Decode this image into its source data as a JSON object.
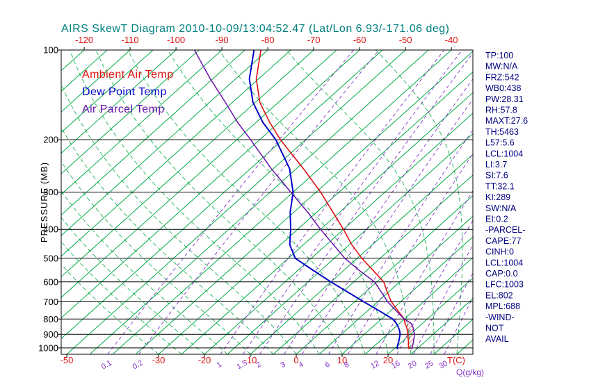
{
  "title": "AIRS SkewT Diagram 2010-10-09/13:04:52.47 (Lat/Lon 6.93/-171.06 deg)",
  "colors": {
    "title": "#008080",
    "temp_labels": "#dd1111",
    "pressure_labels": "#000000",
    "stats": "#000080",
    "isotherms": "#00aa44",
    "moist_adiabats": "#00aa44",
    "mixing_ratio": "#8833cc",
    "cape_hatch": "#cc1111"
  },
  "legend": {
    "items": [
      {
        "label": "Ambient Air Temp",
        "color": "#dd1111"
      },
      {
        "label": "Dew Point Temp",
        "color": "#0000cc"
      },
      {
        "label": "Air Parcel Temp",
        "color": "#6611aa"
      }
    ]
  },
  "stats_panel": {
    "lines": [
      "TP:100",
      "MW:N/A",
      "FRZ:542",
      "WB0:438",
      "PW:28.31",
      "RH:57.8",
      "MAXT:27.6",
      "TH:5463",
      "L57:5.6",
      "LCL:1004",
      "LI:3.7",
      "SI:7.6",
      "TT:32.1",
      "KI:289",
      "SW:N/A",
      "EI:0.2",
      "-PARCEL-",
      "CAPE:77",
      "CINH:0",
      "LCL:1004",
      "CAP:0.0",
      "LFC:1003",
      "EL:802",
      "MPL:688",
      "-WIND-",
      "NOT",
      "AVAIL"
    ]
  },
  "chart_data": {
    "type": "line",
    "title": "AIRS SkewT Diagram 2010-10-09/13:04:52.47 (Lat/Lon 6.93/-171.06 deg)",
    "x_axis": {
      "label": "T(C)",
      "top_tick_labels": [
        -120,
        -110,
        -100,
        -90,
        -80,
        -70,
        -60,
        -50,
        -40
      ],
      "bottom_tick_labels": [
        -50,
        -30,
        -20,
        -10,
        0,
        10,
        20
      ]
    },
    "y_axis": {
      "label": "PRESSURE (MB)",
      "scale": "log",
      "tick_labels": [
        100,
        200,
        300,
        400,
        500,
        600,
        700,
        800,
        900,
        1000
      ],
      "range": [
        100,
        1050
      ]
    },
    "q_axis": {
      "label": "Q(g/kg)",
      "values": [
        0.1,
        0.2,
        1,
        1.5,
        2,
        3,
        4,
        6,
        8,
        12,
        16,
        20,
        25,
        30
      ]
    },
    "isotherms": {
      "start": -130,
      "end": 45,
      "step": 5
    },
    "moist_adiabats": {
      "start": -30,
      "end": 45,
      "step": 5
    },
    "series": [
      {
        "name": "Ambient Air Temp",
        "color": "#dd1111",
        "points": [
          [
            1010,
            23.4
          ],
          [
            1000,
            23.0
          ],
          [
            975,
            22.1
          ],
          [
            950,
            21.3
          ],
          [
            925,
            20.4
          ],
          [
            900,
            19.5
          ],
          [
            875,
            18.5
          ],
          [
            850,
            17.4
          ],
          [
            825,
            16.1
          ],
          [
            800,
            15.0
          ],
          [
            750,
            11.6
          ],
          [
            700,
            8.0
          ],
          [
            650,
            4.8
          ],
          [
            600,
            1.5
          ],
          [
            550,
            -3.5
          ],
          [
            500,
            -9.0
          ],
          [
            450,
            -14.5
          ],
          [
            400,
            -20.0
          ],
          [
            350,
            -26.5
          ],
          [
            300,
            -34.0
          ],
          [
            250,
            -43.5
          ],
          [
            200,
            -55.5
          ],
          [
            175,
            -62.0
          ],
          [
            150,
            -69.0
          ],
          [
            125,
            -75.5
          ],
          [
            100,
            -81.5
          ]
        ]
      },
      {
        "name": "Dew Point Temp",
        "color": "#0000cc",
        "points": [
          [
            1010,
            20.8
          ],
          [
            1000,
            20.5
          ],
          [
            975,
            19.8
          ],
          [
            950,
            19.2
          ],
          [
            925,
            18.5
          ],
          [
            900,
            17.8
          ],
          [
            875,
            16.8
          ],
          [
            850,
            15.6
          ],
          [
            825,
            14.2
          ],
          [
            800,
            12.5
          ],
          [
            750,
            7.5
          ],
          [
            700,
            2.0
          ],
          [
            650,
            -3.8
          ],
          [
            600,
            -10.0
          ],
          [
            550,
            -16.5
          ],
          [
            500,
            -23.5
          ],
          [
            450,
            -28.0
          ],
          [
            400,
            -31.5
          ],
          [
            350,
            -35.8
          ],
          [
            300,
            -40.0
          ],
          [
            250,
            -46.5
          ],
          [
            200,
            -56.5
          ],
          [
            175,
            -63.5
          ],
          [
            150,
            -70.5
          ],
          [
            125,
            -77.0
          ],
          [
            100,
            -83.0
          ]
        ]
      },
      {
        "name": "Air Parcel Temp",
        "color": "#6611aa",
        "points": [
          [
            1010,
            23.9
          ],
          [
            1000,
            23.7
          ],
          [
            975,
            23.1
          ],
          [
            950,
            22.4
          ],
          [
            925,
            21.7
          ],
          [
            900,
            20.9
          ],
          [
            875,
            19.9
          ],
          [
            850,
            18.8
          ],
          [
            825,
            17.4
          ],
          [
            800,
            15.0
          ],
          [
            750,
            11.2
          ],
          [
            700,
            7.2
          ],
          [
            650,
            3.5
          ],
          [
            600,
            -0.5
          ],
          [
            550,
            -6.5
          ],
          [
            500,
            -12.7
          ],
          [
            450,
            -18.5
          ],
          [
            400,
            -25.0
          ],
          [
            350,
            -32.0
          ],
          [
            300,
            -40.5
          ],
          [
            250,
            -50.5
          ],
          [
            200,
            -62.0
          ],
          [
            175,
            -69.0
          ],
          [
            150,
            -76.5
          ],
          [
            125,
            -85.5
          ],
          [
            100,
            -96.0
          ]
        ]
      }
    ],
    "cape_area": {
      "between": [
        "Air Parcel Temp",
        "Ambient Air Temp"
      ],
      "pressure_range": [
        1004,
        802
      ]
    }
  }
}
